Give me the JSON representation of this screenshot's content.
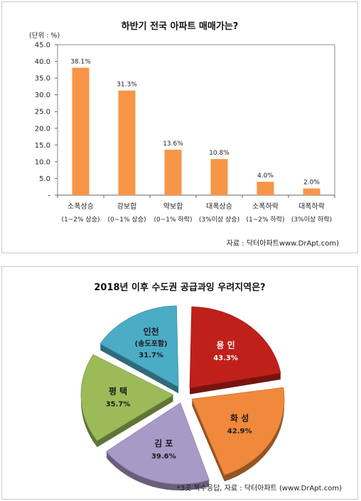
{
  "chart_data": [
    {
      "type": "bar",
      "title": "하반기 전국 아파트 매매가는?",
      "unit": "(단위 : %)",
      "categories": [
        "소폭상승",
        "강보합",
        "약보합",
        "대폭상승",
        "소폭하락",
        "대폭하락"
      ],
      "sublabels": [
        "(1~2% 상승)",
        "(0~1% 상승)",
        "(0~1% 하락)",
        "(3%이상 상승)",
        "(1~2% 하락)",
        "(3%이상 하락)"
      ],
      "values": [
        38.1,
        31.3,
        13.6,
        10.8,
        4.0,
        2.0
      ],
      "value_labels": [
        "38.1%",
        "31.3%",
        "13.6%",
        "10.8%",
        "4.0%",
        "2.0%"
      ],
      "yticks": [
        "45.0",
        "40.0",
        "35.0",
        "30.0",
        "25.0",
        "20.0",
        "15.0",
        "10.0",
        "5.0",
        "-"
      ],
      "ylim": [
        0,
        45
      ],
      "source": "자료 : 닥터아파트www.DrApt.com)",
      "color": "#f79646"
    },
    {
      "type": "pie",
      "title": "2018년 이후 수도권 공급과잉 우려지역은?",
      "slices": [
        {
          "name": "용 인",
          "value": 43.3,
          "label": "43.3%",
          "color": "#c0201a"
        },
        {
          "name": "화 성",
          "value": 42.9,
          "label": "42.9%",
          "color": "#f0893c"
        },
        {
          "name": "김 포",
          "value": 39.6,
          "label": "39.6%",
          "color": "#a89ac6"
        },
        {
          "name": "평 택",
          "value": 35.7,
          "label": "35.7%",
          "color": "#9bbb59"
        },
        {
          "name": "인천",
          "subname": "(송도포함)",
          "value": 31.7,
          "label": "31.7%",
          "color": "#4bacc6"
        }
      ],
      "note": "*3곳 복수응답,  자료 : 닥터아파트 (www.DrApt.com)"
    }
  ]
}
